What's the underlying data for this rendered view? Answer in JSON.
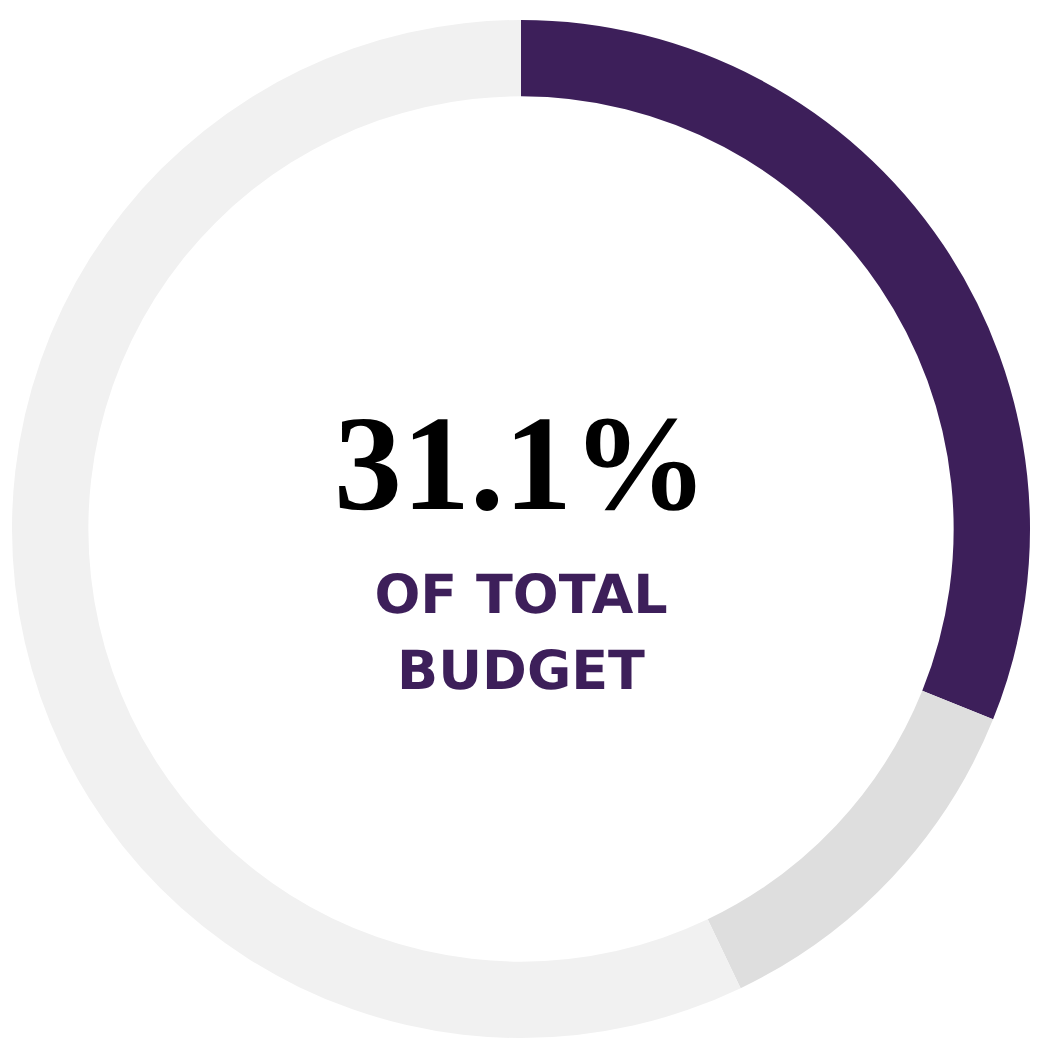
{
  "chart_data": {
    "type": "donut",
    "categories": [
      null,
      null,
      null
    ],
    "values": [
      31.1,
      11.8,
      57.1
    ],
    "colors": [
      "#3d1f5a",
      "#dedede",
      "#f1f1f1"
    ],
    "value_labels": [
      "31.1%",
      null,
      null
    ],
    "annotations": [
      "OF TOTAL\nBUDGET"
    ],
    "legend": false
  }
}
